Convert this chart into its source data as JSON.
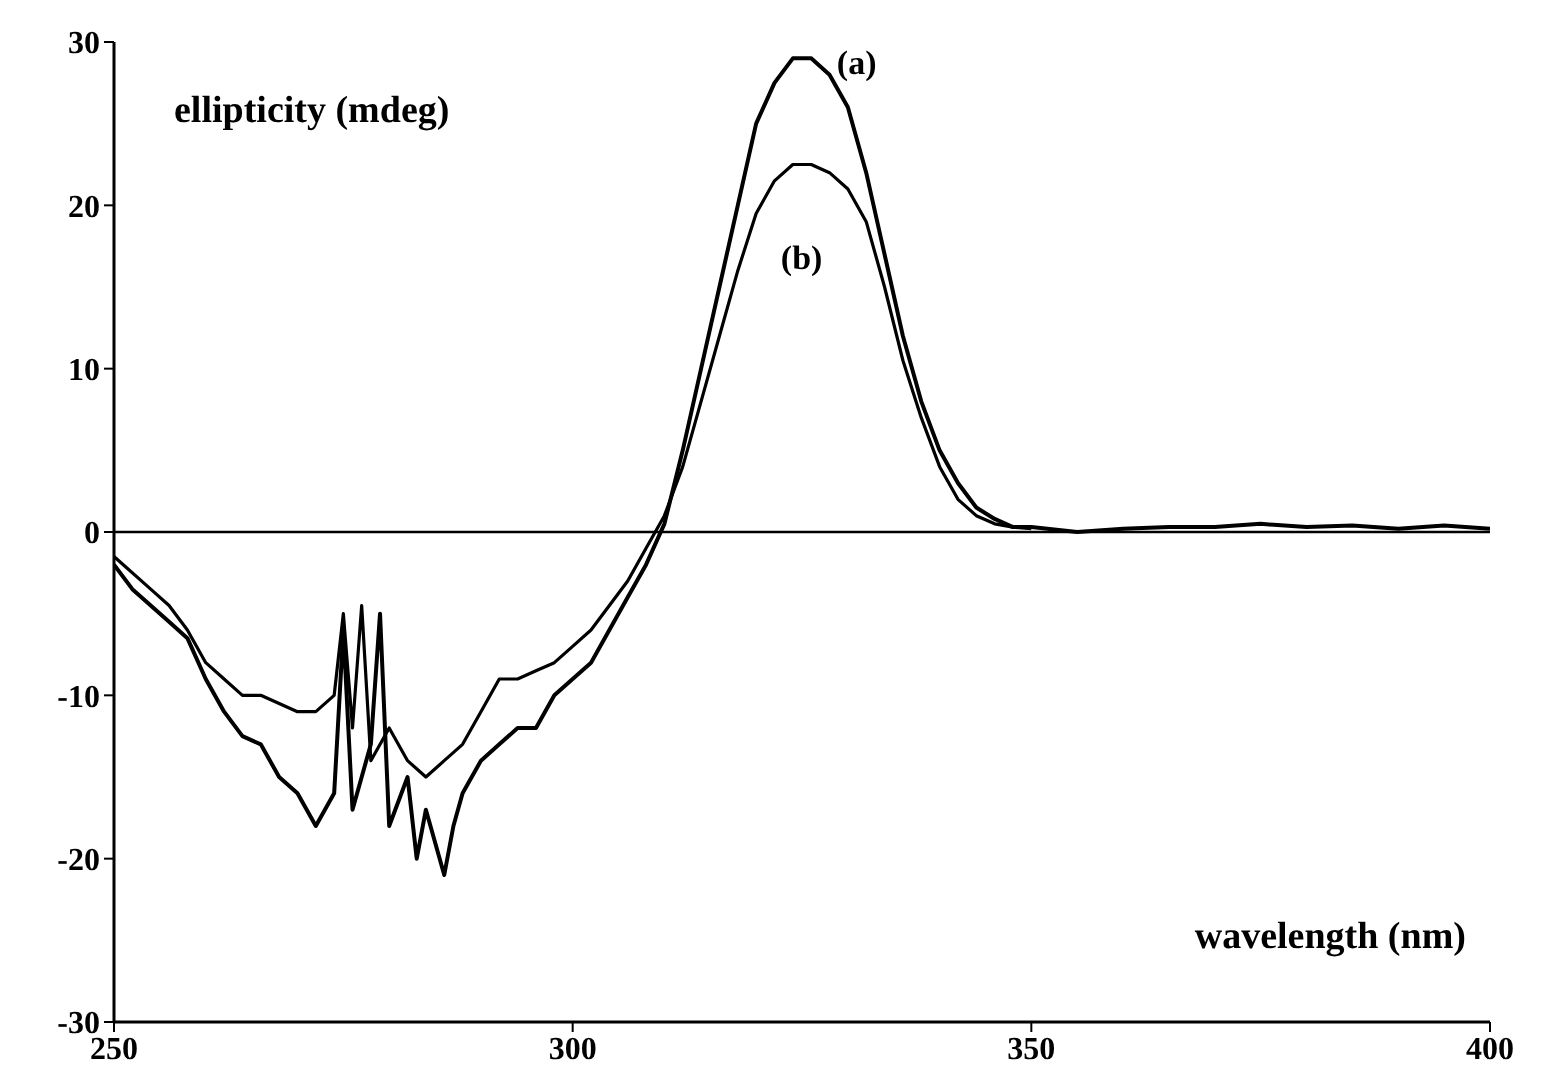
{
  "chart_data": {
    "type": "line",
    "xlabel": "wavelength (nm)",
    "ylabel": "ellipticity (mdeg)",
    "xlim": [
      250,
      400
    ],
    "xticks": [
      250,
      300,
      350,
      400
    ],
    "ylim": [
      -30,
      30
    ],
    "yticks": [
      -30,
      -20,
      -10,
      0,
      10,
      20,
      30
    ],
    "grid": false,
    "legend": false,
    "marker": "none",
    "line_style": "solid",
    "ref_lines": [
      {
        "axis": "y",
        "value": 0,
        "color": "#000000"
      }
    ],
    "series": [
      {
        "name": "(a)",
        "color": "#000000",
        "x": [
          250,
          252,
          254,
          256,
          258,
          260,
          262,
          264,
          266,
          268,
          270,
          272,
          274,
          275,
          276,
          278,
          279,
          280,
          282,
          283,
          284,
          286,
          287,
          288,
          290,
          292,
          294,
          296,
          298,
          300,
          302,
          304,
          306,
          308,
          310,
          312,
          314,
          316,
          318,
          320,
          322,
          324,
          326,
          328,
          330,
          332,
          334,
          336,
          338,
          340,
          342,
          344,
          346,
          348,
          350,
          355,
          360,
          365,
          370,
          375,
          380,
          385,
          390,
          395,
          400
        ],
        "values": [
          -2,
          -3.5,
          -4.5,
          -5.5,
          -6.5,
          -9,
          -11,
          -12.5,
          -13,
          -15,
          -16,
          -18,
          -16,
          -6,
          -17,
          -13,
          -5,
          -18,
          -15,
          -20,
          -17,
          -21,
          -18,
          -16,
          -14,
          -13,
          -12,
          -12,
          -10,
          -9,
          -8,
          -6,
          -4,
          -2,
          0.5,
          5,
          10,
          15,
          20,
          25,
          27.5,
          29,
          29,
          28,
          26,
          22,
          17,
          12,
          8,
          5,
          3,
          1.5,
          0.8,
          0.3,
          0.3,
          0,
          0.2,
          0.3,
          0.3,
          0.5,
          0.3,
          0.4,
          0.2,
          0.4,
          0.2
        ]
      },
      {
        "name": "(b)",
        "color": "#000000",
        "x": [
          250,
          254,
          256,
          258,
          260,
          262,
          264,
          266,
          268,
          270,
          272,
          274,
          275,
          276,
          277,
          278,
          280,
          282,
          284,
          286,
          288,
          290,
          292,
          294,
          296,
          298,
          300,
          302,
          304,
          306,
          308,
          310,
          312,
          314,
          316,
          318,
          320,
          322,
          324,
          326,
          328,
          330,
          332,
          334,
          336,
          338,
          340,
          342,
          344,
          346,
          348,
          350
        ],
        "values": [
          -1.5,
          -3.5,
          -4.5,
          -6,
          -8,
          -9,
          -10,
          -10,
          -10.5,
          -11,
          -11,
          -10,
          -5,
          -12,
          -4.5,
          -14,
          -12,
          -14,
          -15,
          -14,
          -13,
          -11,
          -9,
          -9,
          -8.5,
          -8,
          -7,
          -6,
          -4.5,
          -3,
          -1,
          1,
          4,
          8,
          12,
          16,
          19.5,
          21.5,
          22.5,
          22.5,
          22,
          21,
          19,
          15,
          10.5,
          7,
          4,
          2,
          1,
          0.5,
          0.3,
          0.2
        ]
      }
    ]
  }
}
